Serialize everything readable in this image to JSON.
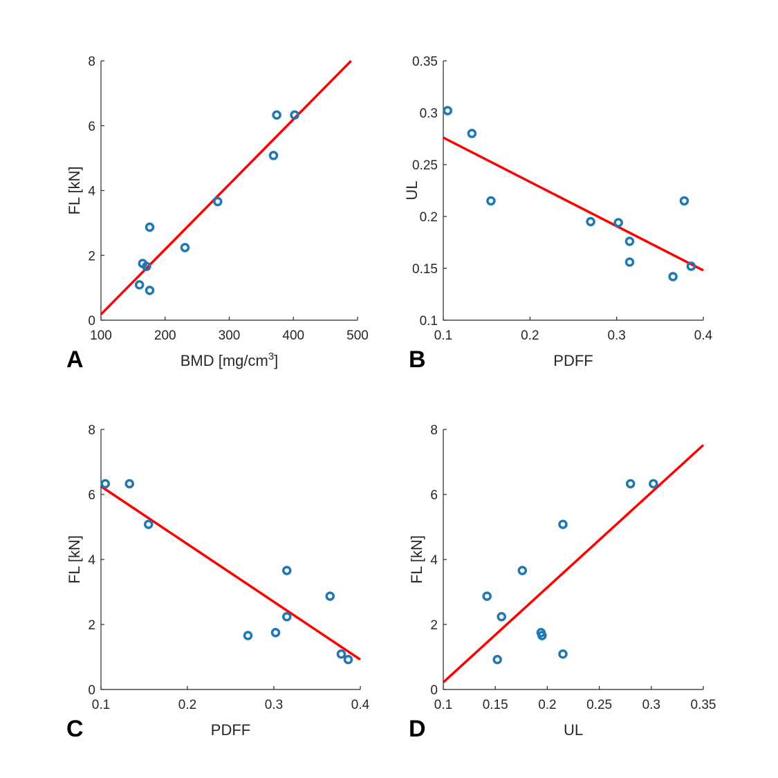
{
  "colors": {
    "marker": "#1f77b4",
    "fit_line": "#ff0000",
    "axis": "#262626"
  },
  "chart_data": [
    {
      "id": "A",
      "type": "scatter",
      "panel_label": "A",
      "xlabel": "BMD [mg/cm",
      "xlabel_sup": "3",
      "xlabel_tail": "]",
      "ylabel": "FL [kN]",
      "xlim": [
        100,
        500
      ],
      "ylim": [
        0,
        8
      ],
      "xticks": [
        100,
        200,
        300,
        400,
        500
      ],
      "xtick_labels": [
        "100",
        "200",
        "300",
        "400",
        "500"
      ],
      "yticks": [
        0,
        2,
        4,
        6,
        8
      ],
      "ytick_labels": [
        "0",
        "2",
        "4",
        "6",
        "8"
      ],
      "points": [
        {
          "x": 374,
          "y": 6.33
        },
        {
          "x": 402,
          "y": 6.33
        },
        {
          "x": 369,
          "y": 5.08
        },
        {
          "x": 282,
          "y": 3.66
        },
        {
          "x": 176,
          "y": 2.87
        },
        {
          "x": 231,
          "y": 2.24
        },
        {
          "x": 165,
          "y": 1.75
        },
        {
          "x": 171,
          "y": 1.66
        },
        {
          "x": 160,
          "y": 1.09
        },
        {
          "x": 176,
          "y": 0.92
        }
      ],
      "fit": {
        "x": [
          100,
          490
        ],
        "y": [
          0.18,
          8.0
        ]
      }
    },
    {
      "id": "B",
      "type": "scatter",
      "panel_label": "B",
      "xlabel": "PDFF",
      "ylabel": "UL",
      "xlim": [
        0.1,
        0.4
      ],
      "ylim": [
        0.1,
        0.35
      ],
      "xticks": [
        0.1,
        0.2,
        0.3,
        0.4
      ],
      "xtick_labels": [
        "0.1",
        "0.2",
        "0.3",
        "0.4"
      ],
      "yticks": [
        0.1,
        0.15,
        0.2,
        0.25,
        0.3,
        0.35
      ],
      "ytick_labels": [
        "0.1",
        "0.15",
        "0.2",
        "0.25",
        "0.3",
        "0.35"
      ],
      "points": [
        {
          "x": 0.105,
          "y": 0.302
        },
        {
          "x": 0.133,
          "y": 0.28
        },
        {
          "x": 0.155,
          "y": 0.215
        },
        {
          "x": 0.27,
          "y": 0.195
        },
        {
          "x": 0.302,
          "y": 0.194
        },
        {
          "x": 0.315,
          "y": 0.176
        },
        {
          "x": 0.315,
          "y": 0.156
        },
        {
          "x": 0.365,
          "y": 0.142
        },
        {
          "x": 0.378,
          "y": 0.215
        },
        {
          "x": 0.386,
          "y": 0.152
        }
      ],
      "fit": {
        "x": [
          0.1,
          0.4
        ],
        "y": [
          0.276,
          0.148
        ]
      }
    },
    {
      "id": "C",
      "type": "scatter",
      "panel_label": "C",
      "xlabel": "PDFF",
      "ylabel": "FL [kN]",
      "xlim": [
        0.1,
        0.4
      ],
      "ylim": [
        0,
        8
      ],
      "xticks": [
        0.1,
        0.2,
        0.3,
        0.4
      ],
      "xtick_labels": [
        "0.1",
        "0.2",
        "0.3",
        "0.4"
      ],
      "yticks": [
        0,
        2,
        4,
        6,
        8
      ],
      "ytick_labels": [
        "0",
        "2",
        "4",
        "6",
        "8"
      ],
      "points": [
        {
          "x": 0.105,
          "y": 6.33
        },
        {
          "x": 0.133,
          "y": 6.33
        },
        {
          "x": 0.155,
          "y": 5.08
        },
        {
          "x": 0.315,
          "y": 3.66
        },
        {
          "x": 0.365,
          "y": 2.87
        },
        {
          "x": 0.315,
          "y": 2.24
        },
        {
          "x": 0.302,
          "y": 1.75
        },
        {
          "x": 0.27,
          "y": 1.66
        },
        {
          "x": 0.378,
          "y": 1.09
        },
        {
          "x": 0.386,
          "y": 0.92
        }
      ],
      "fit": {
        "x": [
          0.1,
          0.4
        ],
        "y": [
          6.25,
          0.92
        ]
      }
    },
    {
      "id": "D",
      "type": "scatter",
      "panel_label": "D",
      "xlabel": "UL",
      "ylabel": "FL [kN]",
      "xlim": [
        0.1,
        0.35
      ],
      "ylim": [
        0,
        8
      ],
      "xticks": [
        0.1,
        0.15,
        0.2,
        0.25,
        0.3,
        0.35
      ],
      "xtick_labels": [
        "0.1",
        "0.15",
        "0.2",
        "0.25",
        "0.3",
        "0.35"
      ],
      "yticks": [
        0,
        2,
        4,
        6,
        8
      ],
      "ytick_labels": [
        "0",
        "2",
        "4",
        "6",
        "8"
      ],
      "points": [
        {
          "x": 0.28,
          "y": 6.33
        },
        {
          "x": 0.302,
          "y": 6.33
        },
        {
          "x": 0.215,
          "y": 5.08
        },
        {
          "x": 0.176,
          "y": 3.66
        },
        {
          "x": 0.142,
          "y": 2.87
        },
        {
          "x": 0.156,
          "y": 2.24
        },
        {
          "x": 0.194,
          "y": 1.75
        },
        {
          "x": 0.195,
          "y": 1.66
        },
        {
          "x": 0.215,
          "y": 1.09
        },
        {
          "x": 0.152,
          "y": 0.92
        }
      ],
      "fit": {
        "x": [
          0.1,
          0.35
        ],
        "y": [
          0.22,
          7.52
        ]
      }
    }
  ]
}
